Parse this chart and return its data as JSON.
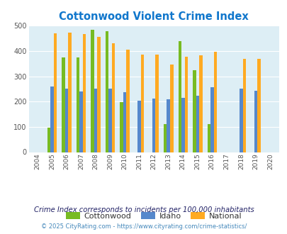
{
  "title": "Cottonwood Violent Crime Index",
  "years": [
    2004,
    2005,
    2006,
    2007,
    2008,
    2009,
    2010,
    2011,
    2012,
    2013,
    2014,
    2015,
    2016,
    2017,
    2018,
    2019,
    2020
  ],
  "cottonwood": [
    0,
    97,
    375,
    375,
    483,
    477,
    197,
    0,
    0,
    112,
    440,
    325,
    112,
    0,
    0,
    0,
    0
  ],
  "idaho": [
    0,
    260,
    250,
    240,
    252,
    252,
    238,
    203,
    212,
    210,
    216,
    222,
    258,
    0,
    252,
    244,
    0
  ],
  "national": [
    0,
    469,
    474,
    467,
    455,
    432,
    405,
    387,
    387,
    347,
    376,
    383,
    398,
    0,
    369,
    369,
    0
  ],
  "cottonwood_color": "#77bb22",
  "idaho_color": "#5588cc",
  "national_color": "#ffaa22",
  "plot_bg": "#ddeef5",
  "ylim": [
    0,
    500
  ],
  "yticks": [
    0,
    100,
    200,
    300,
    400,
    500
  ],
  "bar_width": 0.22,
  "legend_labels": [
    "Cottonwood",
    "Idaho",
    "National"
  ],
  "footnote1": "Crime Index corresponds to incidents per 100,000 inhabitants",
  "footnote2": "© 2025 CityRating.com - https://www.cityrating.com/crime-statistics/",
  "title_color": "#1177cc",
  "footnote1_color": "#222266",
  "footnote2_color": "#4488bb"
}
